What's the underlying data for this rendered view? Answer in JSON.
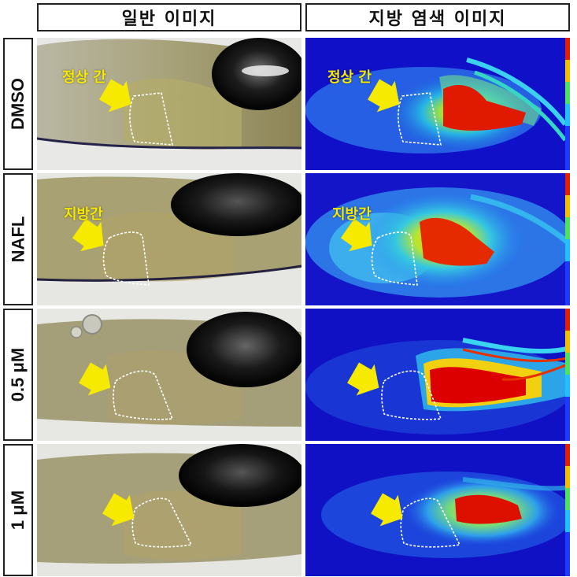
{
  "headers": {
    "brightfield": "일반 이미지",
    "fat_stain": "지방 염색 이미지"
  },
  "rows": [
    {
      "label": "DMSO",
      "annotation": "정상 간"
    },
    {
      "label": "NAFL",
      "annotation": "지방간"
    },
    {
      "label": "0.5 μM",
      "annotation": ""
    },
    {
      "label": "1 μM",
      "annotation": ""
    }
  ],
  "colors": {
    "arrow": "#f5ea00",
    "heatmap_background": "#1010c8",
    "heatmap_hot": "#d40000"
  },
  "icons": {
    "arrow": "arrow-icon",
    "liver_outline": "dashed-outline-icon"
  }
}
